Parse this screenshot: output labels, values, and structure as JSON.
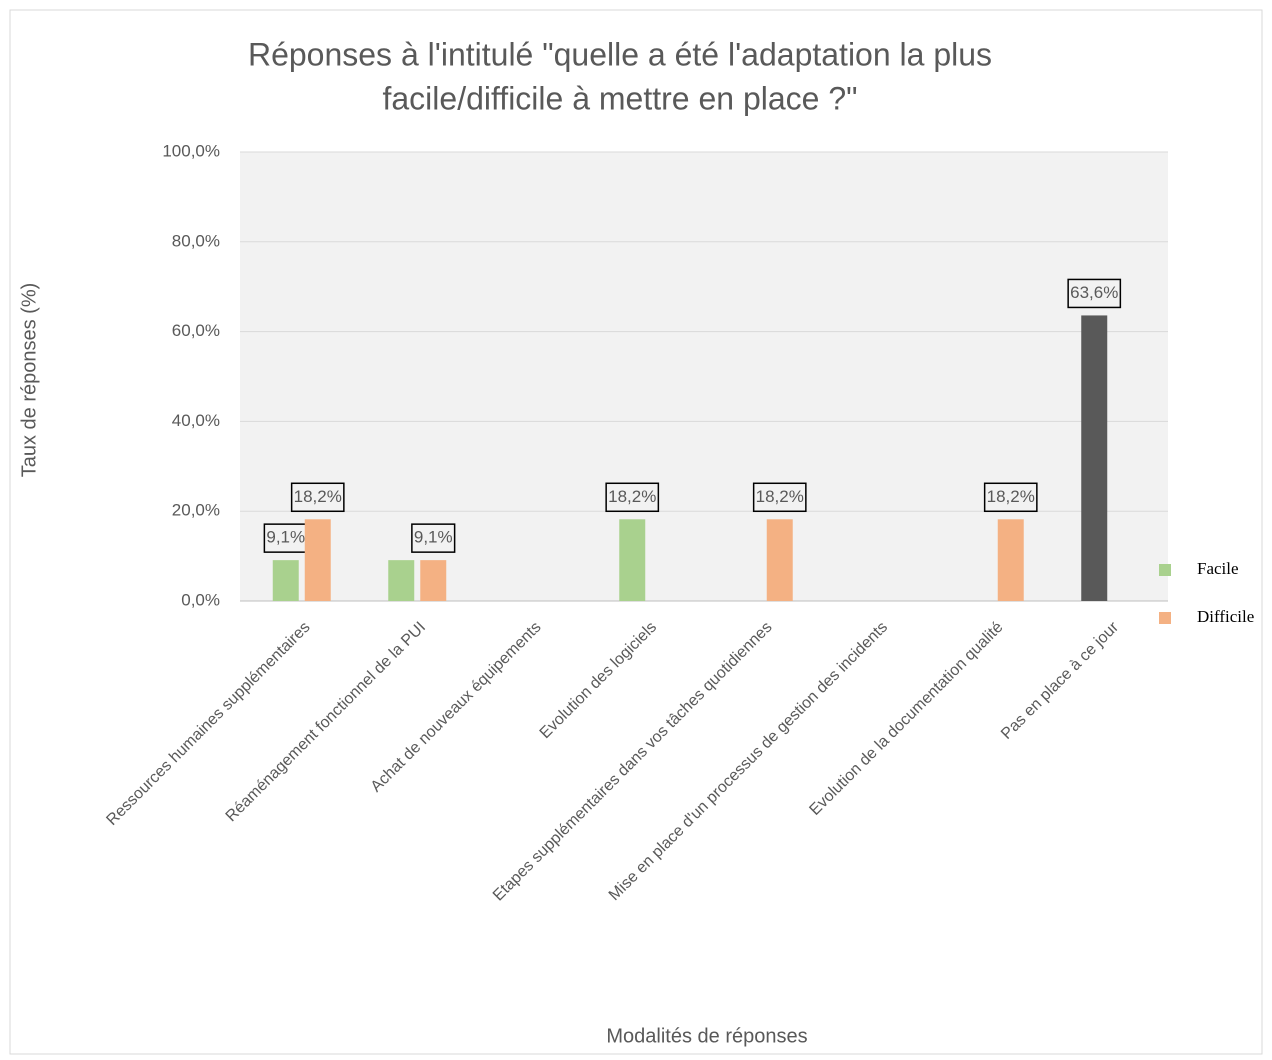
{
  "chart_data": {
    "type": "bar",
    "title": [
      "Réponses à l'intitulé \"quelle a été l'adaptation la plus",
      "facile/difficile à mettre en place ?\""
    ],
    "x_label": "Modalités de réponses",
    "y_label": "Taux de réponses (%)",
    "categories": [
      "Ressources humaines supplémentaires",
      "Réaménagement fonctionnel de la PUI",
      "Achat de nouveaux équipements",
      "Evolution des logiciels",
      "Etapes supplémentaires dans vos tâches quotidiennes",
      "Mise en place d'un processus de gestion des incidents",
      "Evolution de la documentation qualité",
      "Pas en place à ce jour"
    ],
    "series": [
      {
        "name": "Facile",
        "color": "#a9d18e",
        "point_colors": [
          null,
          null,
          null,
          null,
          null,
          null,
          null,
          "#595959"
        ],
        "values": [
          9.1,
          9.1,
          null,
          18.2,
          null,
          null,
          null,
          63.6
        ],
        "value_labels": [
          "9,1%",
          null,
          null,
          "18,2%",
          null,
          null,
          null,
          "63,6%"
        ]
      },
      {
        "name": "Difficile",
        "color": "#f4b183",
        "values": [
          18.2,
          9.1,
          null,
          null,
          18.2,
          null,
          18.2,
          null
        ],
        "value_labels": [
          "18,2%",
          "9,1%",
          null,
          null,
          "18,2%",
          null,
          "18,2%",
          null
        ]
      }
    ],
    "ylim": [
      0,
      100
    ],
    "yticks": [
      {
        "value": 0,
        "label": "0,0%"
      },
      {
        "value": 20,
        "label": "20,0%"
      },
      {
        "value": 40,
        "label": "40,0%"
      },
      {
        "value": 60,
        "label": "60,0%"
      },
      {
        "value": 80,
        "label": "80,0%"
      },
      {
        "value": 100,
        "label": "100,0%"
      }
    ],
    "grid": true,
    "legend": "right"
  }
}
